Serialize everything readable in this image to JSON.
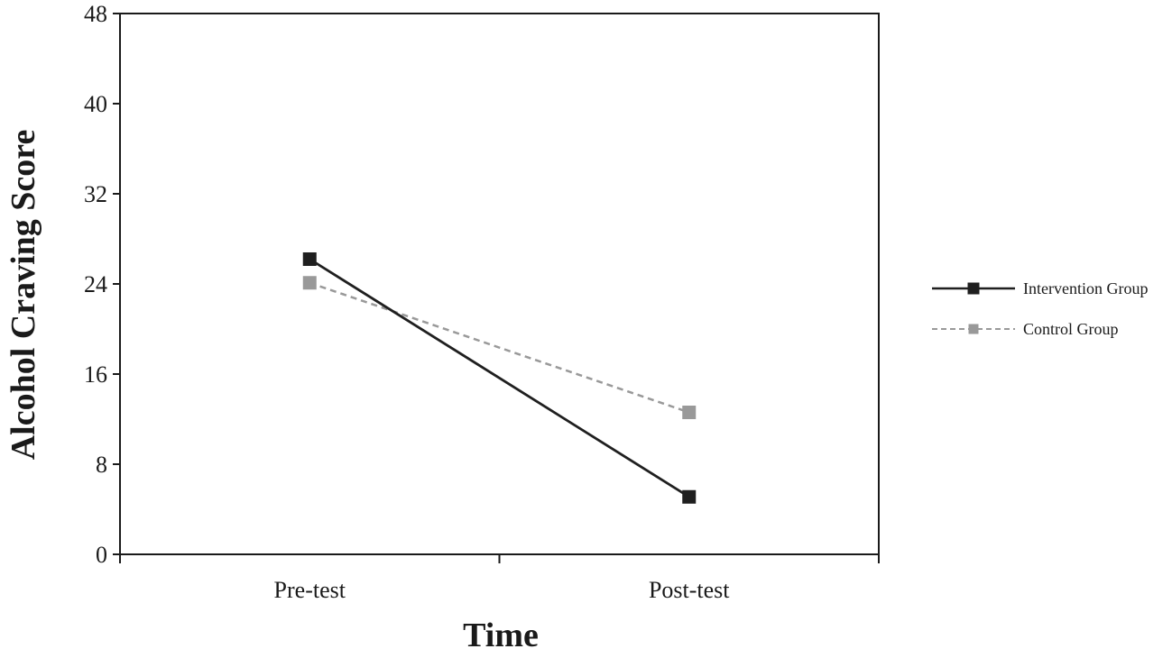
{
  "chart_data": {
    "type": "line",
    "title": "",
    "xlabel": "Time",
    "ylabel": "Alcohol Craving  Score",
    "categories": [
      "Pre-test",
      "Post-test"
    ],
    "ylim": [
      0,
      48
    ],
    "yticks": [
      "0",
      "8",
      "16",
      "24",
      "32",
      "40",
      "48"
    ],
    "grid": false,
    "legend_position": "right",
    "series": [
      {
        "name": "Intervention Group",
        "values": [
          26.2,
          5.1
        ],
        "color": "#1f1f1f",
        "line_style": "solid",
        "marker": "square"
      },
      {
        "name": "Control Group",
        "values": [
          24.1,
          12.6
        ],
        "color": "#999999",
        "line_style": "dashed",
        "marker": "square"
      }
    ]
  }
}
